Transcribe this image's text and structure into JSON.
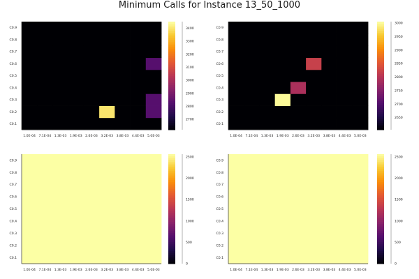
{
  "title": "Minimum Calls for Instance 13_50_1000",
  "chart_data": [
    {
      "type": "heatmap",
      "title": "",
      "x_categories": [
        "1.0E-04",
        "7.1E-04",
        "1.3E-03",
        "1.9E-03",
        "2.6E-03",
        "3.2E-03",
        "3.8E-03",
        "4.4E-03",
        "5.0E-03"
      ],
      "y_categories": [
        "C0.1",
        "C0.2",
        "C0.3",
        "C0.4",
        "C0.5",
        "C0.6",
        "C0.7",
        "C0.8",
        "C0.9"
      ],
      "clim": [
        2620,
        3450
      ],
      "colorbar_ticks": [
        2700,
        2800,
        2900,
        3000,
        3100,
        3200,
        3300,
        3400
      ],
      "background_value": 2620,
      "cells": [
        {
          "x": "3.2E-03",
          "y": "C0.2",
          "value": 3400
        },
        {
          "x": "5.0E-03",
          "y": "C0.2",
          "value": 2830
        },
        {
          "x": "5.0E-03",
          "y": "C0.3",
          "value": 2830
        },
        {
          "x": "5.0E-03",
          "y": "C0.6",
          "value": 2830
        }
      ]
    },
    {
      "type": "heatmap",
      "title": "",
      "x_categories": [
        "1.0E-04",
        "7.1E-04",
        "1.3E-03",
        "1.9E-03",
        "2.6E-03",
        "3.2E-03",
        "3.8E-03",
        "4.4E-03",
        "5.0E-03"
      ],
      "y_categories": [
        "C0.1",
        "C0.2",
        "C0.3",
        "C0.4",
        "C0.5",
        "C0.6",
        "C0.7",
        "C0.8",
        "C0.9"
      ],
      "clim": [
        2605,
        3005
      ],
      "colorbar_ticks": [
        2650,
        2700,
        2750,
        2800,
        2850,
        2900,
        2950,
        3000
      ],
      "background_value": 2605,
      "cells": [
        {
          "x": "1.9E-03",
          "y": "C0.3",
          "value": 3000
        },
        {
          "x": "2.6E-03",
          "y": "C0.4",
          "value": 2790
        },
        {
          "x": "3.2E-03",
          "y": "C0.6",
          "value": 2820
        }
      ]
    },
    {
      "type": "heatmap",
      "title": "",
      "x_categories": [
        "1.0E-04",
        "7.1E-04",
        "1.3E-03",
        "1.9E-03",
        "2.6E-03",
        "3.2E-03",
        "3.8E-03",
        "4.4E-03",
        "5.0E-03"
      ],
      "y_categories": [
        "C0.1",
        "C0.2",
        "C0.3",
        "C0.4",
        "C0.5",
        "C0.6",
        "C0.7",
        "C0.8",
        "C0.9"
      ],
      "clim": [
        0,
        2560
      ],
      "colorbar_ticks": [
        0,
        500,
        1000,
        1500,
        2000,
        2500
      ],
      "background_value": 2560,
      "cells": []
    },
    {
      "type": "heatmap",
      "title": "",
      "x_categories": [
        "1.0E-04",
        "7.1E-04",
        "1.3E-03",
        "1.9E-03",
        "2.6E-03",
        "3.2E-03",
        "3.8E-03",
        "4.4E-03",
        "5.0E-03"
      ],
      "y_categories": [
        "C0.1",
        "C0.2",
        "C0.3",
        "C0.4",
        "C0.5",
        "C0.6",
        "C0.7",
        "C0.8",
        "C0.9"
      ],
      "clim": [
        0,
        2560
      ],
      "colorbar_ticks": [
        0,
        500,
        1000,
        1500,
        2000,
        2500
      ],
      "background_value": 2560,
      "cells": []
    }
  ],
  "colormap": {
    "name": "inferno",
    "stops": [
      "#000004",
      "#1f0c48",
      "#550f6d",
      "#88226a",
      "#ba3655",
      "#e35933",
      "#f98e09",
      "#f8c932",
      "#fcffa4"
    ]
  }
}
